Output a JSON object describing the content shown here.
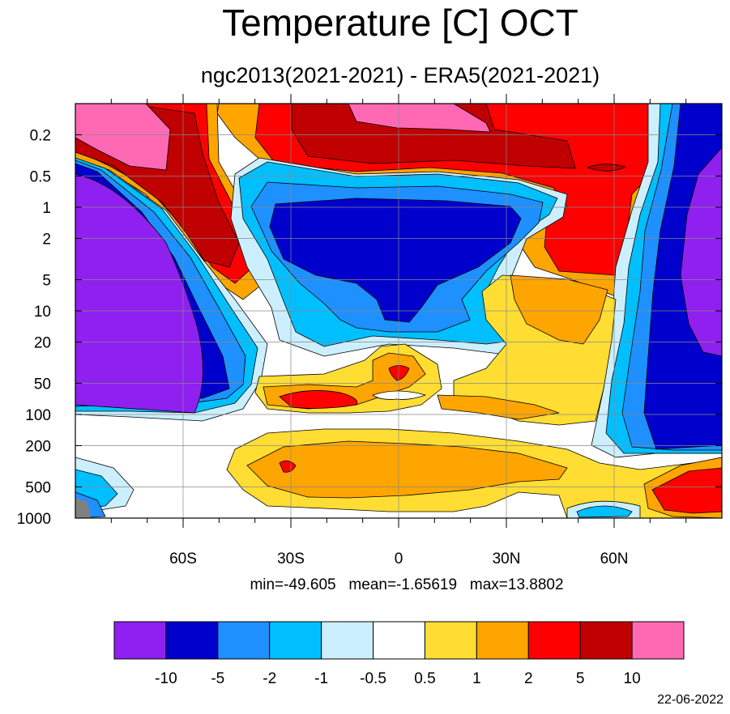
{
  "header": {
    "title": "Temperature [C] OCT",
    "subtitle": "ngc2013(2021-2021) - ERA5(2021-2021)"
  },
  "footer": {
    "stats": "min=-49.605   mean=-1.65619   max=13.8802",
    "date": "22-06-2022"
  },
  "colors": {
    "lt_neg10": "#8F20F0",
    "neg10_neg5": "#0000CC",
    "neg5_neg2": "#1E90FF",
    "neg2_neg1": "#00BFFF",
    "neg1_neg05": "#CCEFFF",
    "neg05_05": "#FFFFFF",
    "p05_1": "#FFDD33",
    "p1_2": "#FFA500",
    "p2_5": "#FF0000",
    "p5_10": "#C00000",
    "gt10": "#FF69B4",
    "missing": "#808080"
  },
  "chart_data": {
    "type": "heatmap",
    "title": "Temperature [C] OCT",
    "subtitle": "ngc2013(2021-2021) - ERA5(2021-2021)",
    "xlabel": "",
    "ylabel": "",
    "x": {
      "name": "latitude",
      "range": [
        -90,
        90
      ],
      "ticks": [
        -60,
        -30,
        0,
        30,
        60
      ],
      "tick_labels": [
        "60S",
        "30S",
        "0",
        "30N",
        "60N"
      ]
    },
    "y": {
      "name": "pressure",
      "scale": "log",
      "reversed": true,
      "range": [
        1000,
        0.1
      ],
      "ticks": [
        0.2,
        0.5,
        1,
        2,
        5,
        10,
        20,
        50,
        100,
        200,
        500,
        1000
      ],
      "tick_labels": [
        "0.2",
        "0.5",
        "1",
        "2",
        "5",
        "10",
        "20",
        "50",
        "100",
        "200",
        "500",
        "1000"
      ]
    },
    "grid": true,
    "legend": "bottom colorbar",
    "colorbar": {
      "levels": [
        -10,
        -5,
        -2,
        -1,
        -0.5,
        0.5,
        1,
        2,
        5,
        10
      ],
      "labels": [
        "-10",
        "-5",
        "-2",
        "-1",
        "-0.5",
        "0.5",
        "1",
        "2",
        "5",
        "10"
      ],
      "colors": [
        "#8F20F0",
        "#0000CC",
        "#1E90FF",
        "#00BFFF",
        "#CCEFFF",
        "#FFFFFF",
        "#FFDD33",
        "#FFA500",
        "#FF0000",
        "#C00000",
        "#FF69B4"
      ]
    },
    "stats": {
      "min": -49.605,
      "mean": -1.65619,
      "max": 13.8802
    }
  }
}
